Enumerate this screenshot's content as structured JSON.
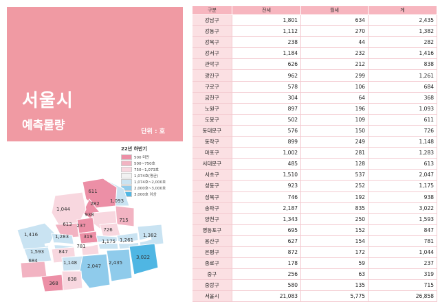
{
  "title": "서울시",
  "subtitle": "예측물량",
  "unit": "단위 : 호",
  "legend": {
    "title": "22년 하반기",
    "items": [
      {
        "label": "500 미만",
        "color": "#ec8fa6"
      },
      {
        "label": "500~750호",
        "color": "#f2b3c2"
      },
      {
        "label": "750~1,073호",
        "color": "#f8d7df"
      },
      {
        "label": "1,074호(평균)",
        "color": "#f2f2f2"
      },
      {
        "label": "1,074호~2,000호",
        "color": "#c9e3f2"
      },
      {
        "label": "2,000호~3,000호",
        "color": "#8fcbeb"
      },
      {
        "label": "3,000호 이상",
        "color": "#4fb6e3"
      }
    ]
  },
  "map_labels": [
    {
      "text": "611"
    },
    {
      "text": "282"
    },
    {
      "text": "1,093"
    },
    {
      "text": "1,044"
    },
    {
      "text": "938"
    },
    {
      "text": "715"
    },
    {
      "text": "613"
    },
    {
      "text": "237"
    },
    {
      "text": "726"
    },
    {
      "text": "1,416"
    },
    {
      "text": "1,283"
    },
    {
      "text": "319"
    },
    {
      "text": "1,175"
    },
    {
      "text": "1,261"
    },
    {
      "text": "1,382"
    },
    {
      "text": "781"
    },
    {
      "text": "1,593"
    },
    {
      "text": "847"
    },
    {
      "text": "684"
    },
    {
      "text": "1,148"
    },
    {
      "text": "2,047"
    },
    {
      "text": "2,435"
    },
    {
      "text": "3,022"
    },
    {
      "text": "368"
    },
    {
      "text": "838"
    }
  ],
  "table": {
    "headers": [
      "구분",
      "전세",
      "월세",
      "계"
    ],
    "rows": [
      [
        "강남구",
        "1,801",
        "634",
        "2,435"
      ],
      [
        "강동구",
        "1,112",
        "270",
        "1,382"
      ],
      [
        "강북구",
        "238",
        "44",
        "282"
      ],
      [
        "강서구",
        "1,184",
        "232",
        "1,416"
      ],
      [
        "관악구",
        "626",
        "212",
        "838"
      ],
      [
        "광진구",
        "962",
        "299",
        "1,261"
      ],
      [
        "구로구",
        "578",
        "106",
        "684"
      ],
      [
        "금천구",
        "304",
        "64",
        "368"
      ],
      [
        "노원구",
        "897",
        "196",
        "1,093"
      ],
      [
        "도봉구",
        "502",
        "109",
        "611"
      ],
      [
        "동대문구",
        "576",
        "150",
        "726"
      ],
      [
        "동작구",
        "899",
        "249",
        "1,148"
      ],
      [
        "마포구",
        "1,002",
        "281",
        "1,283"
      ],
      [
        "서대문구",
        "485",
        "128",
        "613"
      ],
      [
        "서초구",
        "1,510",
        "537",
        "2,047"
      ],
      [
        "성동구",
        "923",
        "252",
        "1,175"
      ],
      [
        "성북구",
        "746",
        "192",
        "938"
      ],
      [
        "송파구",
        "2,187",
        "835",
        "3,022"
      ],
      [
        "양천구",
        "1,343",
        "250",
        "1,593"
      ],
      [
        "영등포구",
        "695",
        "152",
        "847"
      ],
      [
        "용산구",
        "627",
        "154",
        "781"
      ],
      [
        "은평구",
        "872",
        "172",
        "1,044"
      ],
      [
        "종로구",
        "178",
        "59",
        "237"
      ],
      [
        "중구",
        "256",
        "63",
        "319"
      ],
      [
        "중랑구",
        "580",
        "135",
        "715"
      ]
    ],
    "total": [
      "서울시",
      "21,083",
      "5,775",
      "26,858"
    ]
  }
}
